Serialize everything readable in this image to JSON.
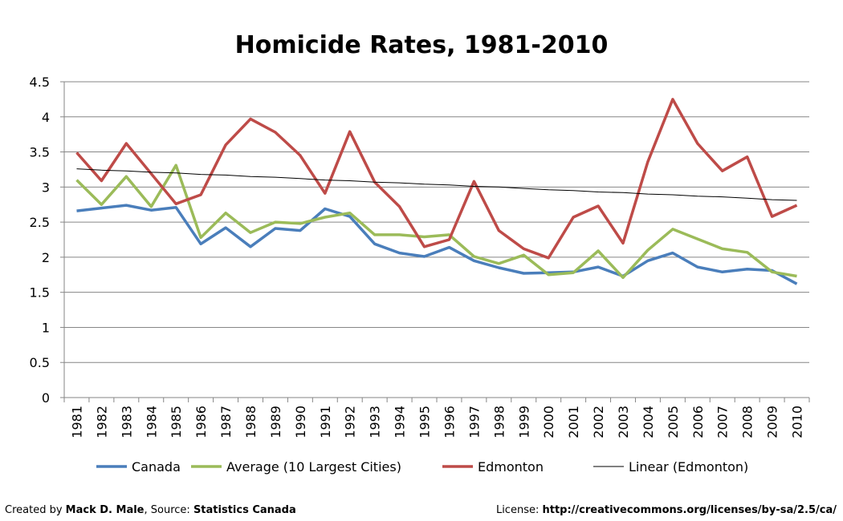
{
  "chart_data": {
    "type": "line",
    "title": "Homicide Rates, 1981-2010",
    "xlabel": "",
    "ylabel": "",
    "ylim": [
      0,
      4.5
    ],
    "yticks": [
      0,
      0.5,
      1,
      1.5,
      2,
      2.5,
      3,
      3.5,
      4,
      4.5
    ],
    "ytick_labels": [
      "0",
      "0.5",
      "1",
      "1.5",
      "2",
      "2.5",
      "3",
      "3.5",
      "4",
      "4.5"
    ],
    "grid": true,
    "legend_position": "bottom",
    "categories": [
      "1981",
      "1982",
      "1983",
      "1984",
      "1985",
      "1986",
      "1987",
      "1988",
      "1989",
      "1990",
      "1991",
      "1992",
      "1993",
      "1994",
      "1995",
      "1996",
      "1997",
      "1998",
      "1999",
      "2000",
      "2001",
      "2002",
      "2003",
      "2004",
      "2005",
      "2006",
      "2007",
      "2008",
      "2009",
      "2010"
    ],
    "series": [
      {
        "name": "Canada",
        "color": "#4a7ebb",
        "values": [
          2.66,
          2.7,
          2.74,
          2.67,
          2.71,
          2.19,
          2.42,
          2.15,
          2.41,
          2.38,
          2.69,
          2.58,
          2.19,
          2.06,
          2.01,
          2.14,
          1.95,
          1.85,
          1.77,
          1.78,
          1.79,
          1.86,
          1.73,
          1.95,
          2.06,
          1.86,
          1.79,
          1.83,
          1.81,
          1.62
        ]
      },
      {
        "name": "Average (10 Largest Cities)",
        "color": "#9bbb59",
        "values": [
          3.1,
          2.75,
          3.15,
          2.72,
          3.31,
          2.28,
          2.63,
          2.35,
          2.5,
          2.48,
          2.57,
          2.63,
          2.32,
          2.32,
          2.29,
          2.32,
          2.01,
          1.91,
          2.03,
          1.75,
          1.78,
          2.09,
          1.71,
          2.1,
          2.4,
          2.26,
          2.12,
          2.07,
          1.79,
          1.73
        ]
      },
      {
        "name": "Edmonton",
        "color": "#be4b48",
        "values": [
          3.49,
          3.09,
          3.62,
          3.19,
          2.76,
          2.89,
          3.6,
          3.97,
          3.78,
          3.45,
          2.91,
          3.79,
          3.07,
          2.72,
          2.15,
          2.25,
          3.08,
          2.38,
          2.12,
          1.99,
          2.57,
          2.73,
          2.2,
          3.36,
          4.25,
          3.62,
          3.23,
          3.43,
          2.58,
          2.74
        ]
      },
      {
        "name": "Linear (Edmonton)",
        "color": "#000000",
        "trend": true,
        "values": [
          3.26,
          3.24,
          3.23,
          3.21,
          3.2,
          3.18,
          3.17,
          3.15,
          3.14,
          3.12,
          3.1,
          3.09,
          3.07,
          3.06,
          3.04,
          3.03,
          3.01,
          3.0,
          2.98,
          2.96,
          2.95,
          2.93,
          2.92,
          2.9,
          2.89,
          2.87,
          2.86,
          2.84,
          2.82,
          2.81
        ]
      }
    ]
  },
  "footer": {
    "created_prefix": "Created by ",
    "author": "Mack D. Male",
    "source_prefix": ", Source: ",
    "source": "Statistics Canada",
    "license_prefix": "License: ",
    "license_url": "http://creativecommons.org/licenses/by-sa/2.5/ca/"
  }
}
